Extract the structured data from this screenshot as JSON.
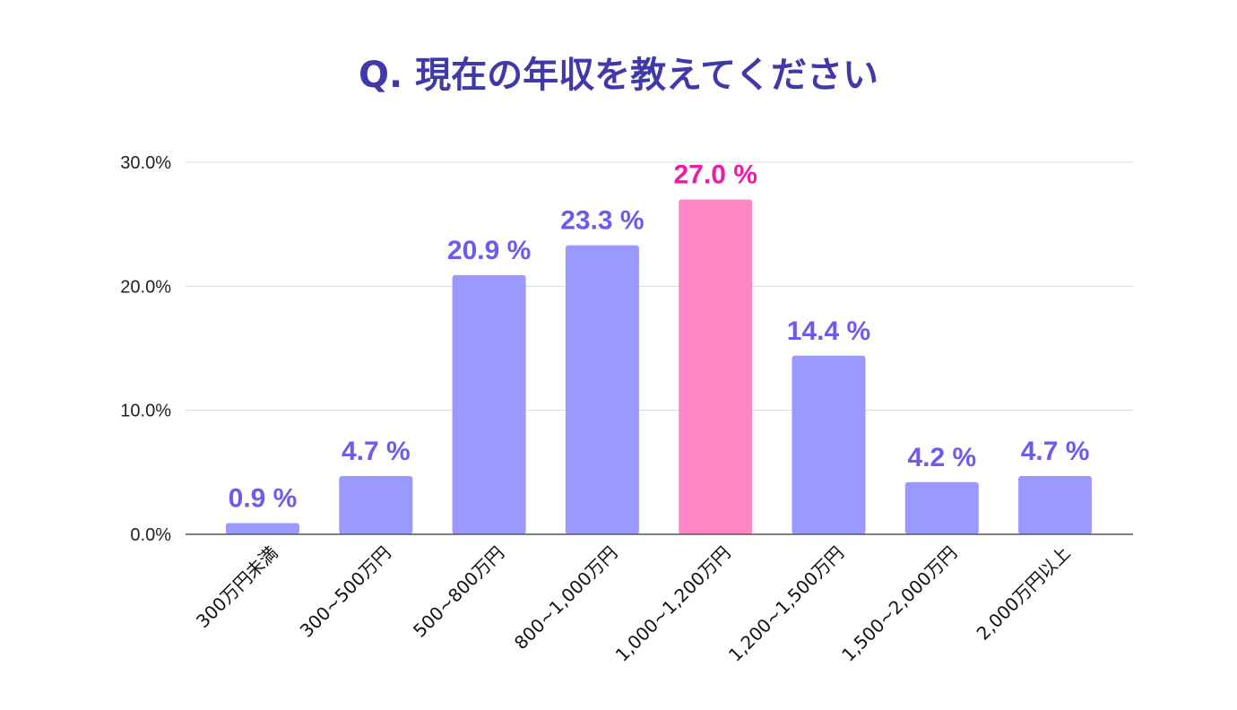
{
  "chart_data": {
    "type": "bar",
    "title": "Q. 現在の年収を教えてください",
    "xlabel": "",
    "ylabel": "",
    "categories": [
      "300万円未満",
      "300~500万円",
      "500~800万円",
      "800~1,000万円",
      "1,000~1,200万円",
      "1,200~1,500万円",
      "1,500~2,000万円",
      "2,000万円以上"
    ],
    "values": [
      0.9,
      4.7,
      20.9,
      23.3,
      27.0,
      14.4,
      4.2,
      4.7
    ],
    "value_labels": [
      "0.9 %",
      "4.7 %",
      "20.9 %",
      "23.3 %",
      "27.0 %",
      "14.4 %",
      "4.2 %",
      "4.7 %"
    ],
    "ylim": [
      0,
      30
    ],
    "yticks": [
      0,
      10,
      20,
      30
    ],
    "ytick_labels": [
      "0.0%",
      "10.0%",
      "20.0%",
      "30.0%"
    ],
    "grid": true,
    "highlight_index": 4,
    "colors": {
      "title": "#3f3aa8",
      "bar": "#9999ff",
      "bar_highlight": "#ff88c4",
      "label": "#6b5cf0",
      "label_highlight": "#ee1aa8",
      "grid": "#d9d9d9",
      "axis": "#555555"
    }
  }
}
